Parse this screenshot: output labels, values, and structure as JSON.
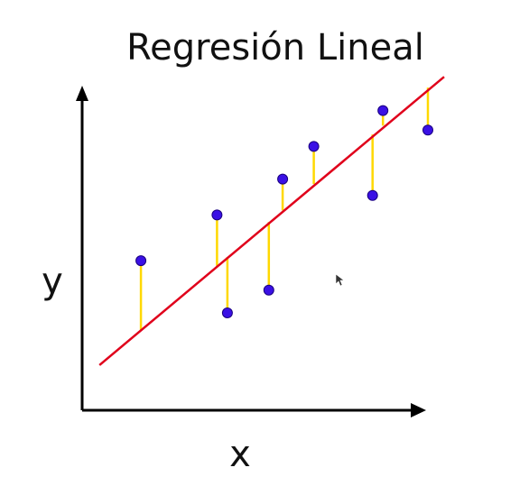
{
  "title": "Regresión Lineal",
  "colors": {
    "axis": "#000000",
    "regression_line": "#e0001b",
    "residual": "#ffd800",
    "point": "#3a10e5",
    "point_stroke": "#1a0080"
  },
  "chart_data": {
    "type": "scatter",
    "title": "Regresión Lineal",
    "xlabel": "x",
    "ylabel": "y",
    "xlim": [
      0,
      100
    ],
    "ylim": [
      0,
      100
    ],
    "grid": false,
    "legend": "none",
    "regression_line": {
      "x": [
        5,
        100
      ],
      "y": [
        13,
        98
      ]
    },
    "points": [
      {
        "x": 17,
        "y": 45
      },
      {
        "x": 39,
        "y": 59
      },
      {
        "x": 42,
        "y": 29
      },
      {
        "x": 54,
        "y": 36
      },
      {
        "x": 58,
        "y": 70
      },
      {
        "x": 67,
        "y": 80
      },
      {
        "x": 84,
        "y": 65
      },
      {
        "x": 87,
        "y": 91
      },
      {
        "x": 100,
        "y": 85
      }
    ]
  }
}
